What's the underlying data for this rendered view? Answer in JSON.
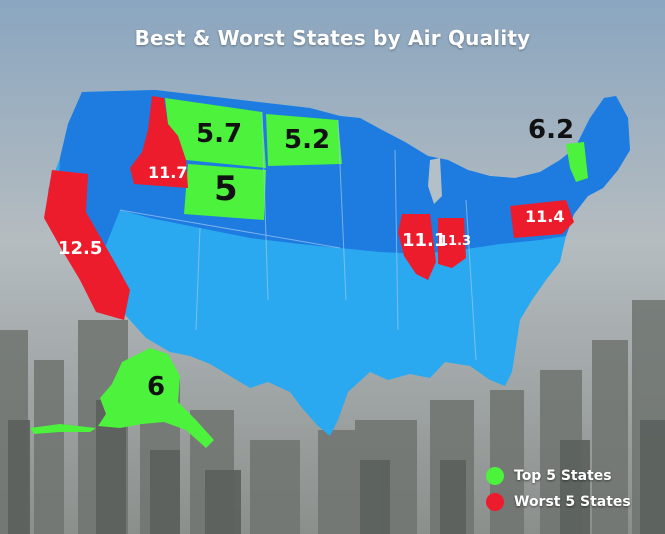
{
  "title": "Best & Worst States by Air Quality",
  "colors": {
    "top": "#4cf23c",
    "worst": "#ec1c2c",
    "map_north": "#1e7be0",
    "map_south": "#2aa9f0"
  },
  "labels": {
    "montana": "5.7",
    "north_dakota": "5.2",
    "wyoming": "5",
    "vermont": "6.2",
    "alaska": "6",
    "idaho": "11.7",
    "california": "12.5",
    "illinois": "11.1",
    "indiana": "11.3",
    "pennsylvania": "11.4"
  },
  "legend": {
    "top": "Top 5 States",
    "worst": "Worst 5 States"
  }
}
